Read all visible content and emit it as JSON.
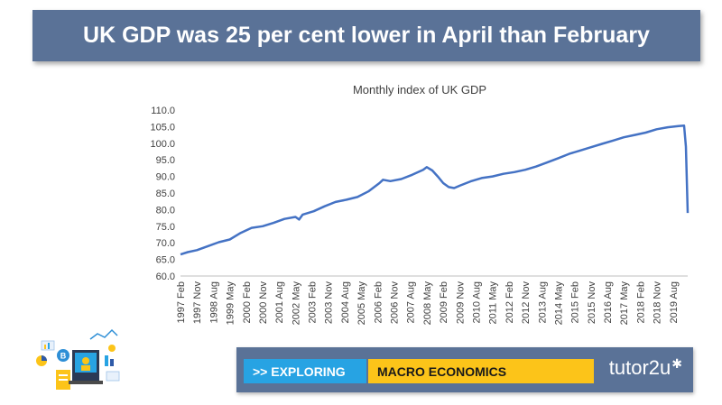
{
  "slide": {
    "title": "UK GDP was 25 per cent lower in April than February"
  },
  "footer": {
    "tag_exploring": ">> EXPLORING",
    "tag_topic": "MACRO ECONOMICS",
    "brand": "tutor2u",
    "brand_icon": "star-burst-icon"
  },
  "colors": {
    "banner": "#5a7297",
    "line": "#4472c4",
    "tag_exploring": "#27a3e3",
    "tag_topic": "#fcc419"
  },
  "chart_data": {
    "type": "line",
    "title": "Monthly index of UK GDP",
    "xlabel": "",
    "ylabel": "",
    "ylim": [
      60,
      110
    ],
    "yticks": [
      "60.0",
      "65.0",
      "70.0",
      "75.0",
      "80.0",
      "85.0",
      "90.0",
      "95.0",
      "100.0",
      "105.0",
      "110.0"
    ],
    "x_tick_labels": [
      "1997 Feb",
      "1997 Nov",
      "1998 Aug",
      "1999 May",
      "2000 Feb",
      "2000 Nov",
      "2001 Aug",
      "2002 May",
      "2003 Feb",
      "2003 Nov",
      "2004 Aug",
      "2005 May",
      "2006 Feb",
      "2006 Nov",
      "2007 Aug",
      "2008 May",
      "2009 Feb",
      "2009 Nov",
      "2010 Aug",
      "2011 May",
      "2012 Feb",
      "2012 Nov",
      "2013 Aug",
      "2014 May",
      "2015 Feb",
      "2015 Nov",
      "2016 Aug",
      "2017 May",
      "2018 Feb",
      "2018 Nov",
      "2019 Aug"
    ],
    "grid": false,
    "legend": "none",
    "series": [
      {
        "values": [
          {
            "x": "1997-02",
            "y": 66.5
          },
          {
            "x": "1997-06",
            "y": 67.2
          },
          {
            "x": "1997-11",
            "y": 67.8
          },
          {
            "x": "1998-05",
            "y": 69.0
          },
          {
            "x": "1998-11",
            "y": 70.2
          },
          {
            "x": "1999-05",
            "y": 71.0
          },
          {
            "x": "1999-11",
            "y": 73.0
          },
          {
            "x": "2000-05",
            "y": 74.5
          },
          {
            "x": "2000-11",
            "y": 75.0
          },
          {
            "x": "2001-05",
            "y": 76.0
          },
          {
            "x": "2001-11",
            "y": 77.2
          },
          {
            "x": "2002-05",
            "y": 77.8
          },
          {
            "x": "2002-07",
            "y": 77.0
          },
          {
            "x": "2002-09",
            "y": 78.5
          },
          {
            "x": "2003-03",
            "y": 79.5
          },
          {
            "x": "2003-09",
            "y": 81.0
          },
          {
            "x": "2004-03",
            "y": 82.3
          },
          {
            "x": "2004-09",
            "y": 83.0
          },
          {
            "x": "2005-03",
            "y": 83.8
          },
          {
            "x": "2005-09",
            "y": 85.5
          },
          {
            "x": "2006-03",
            "y": 88.0
          },
          {
            "x": "2006-05",
            "y": 89.0
          },
          {
            "x": "2006-09",
            "y": 88.6
          },
          {
            "x": "2007-03",
            "y": 89.2
          },
          {
            "x": "2007-09",
            "y": 90.5
          },
          {
            "x": "2008-03",
            "y": 92.0
          },
          {
            "x": "2008-05",
            "y": 92.8
          },
          {
            "x": "2008-08",
            "y": 91.8
          },
          {
            "x": "2008-11",
            "y": 90.0
          },
          {
            "x": "2009-02",
            "y": 88.0
          },
          {
            "x": "2009-05",
            "y": 86.8
          },
          {
            "x": "2009-08",
            "y": 86.5
          },
          {
            "x": "2009-11",
            "y": 87.2
          },
          {
            "x": "2010-05",
            "y": 88.5
          },
          {
            "x": "2010-11",
            "y": 89.5
          },
          {
            "x": "2011-05",
            "y": 90.0
          },
          {
            "x": "2011-11",
            "y": 90.8
          },
          {
            "x": "2012-05",
            "y": 91.3
          },
          {
            "x": "2012-11",
            "y": 92.0
          },
          {
            "x": "2013-05",
            "y": 93.0
          },
          {
            "x": "2013-11",
            "y": 94.2
          },
          {
            "x": "2014-05",
            "y": 95.5
          },
          {
            "x": "2014-11",
            "y": 96.8
          },
          {
            "x": "2015-05",
            "y": 97.8
          },
          {
            "x": "2015-11",
            "y": 98.8
          },
          {
            "x": "2016-05",
            "y": 99.8
          },
          {
            "x": "2016-11",
            "y": 100.8
          },
          {
            "x": "2017-05",
            "y": 101.8
          },
          {
            "x": "2017-11",
            "y": 102.5
          },
          {
            "x": "2018-05",
            "y": 103.2
          },
          {
            "x": "2018-11",
            "y": 104.2
          },
          {
            "x": "2019-05",
            "y": 104.8
          },
          {
            "x": "2019-11",
            "y": 105.2
          },
          {
            "x": "2020-02",
            "y": 105.3
          },
          {
            "x": "2020-03",
            "y": 99.0
          },
          {
            "x": "2020-04",
            "y": 79.0
          }
        ]
      }
    ]
  }
}
